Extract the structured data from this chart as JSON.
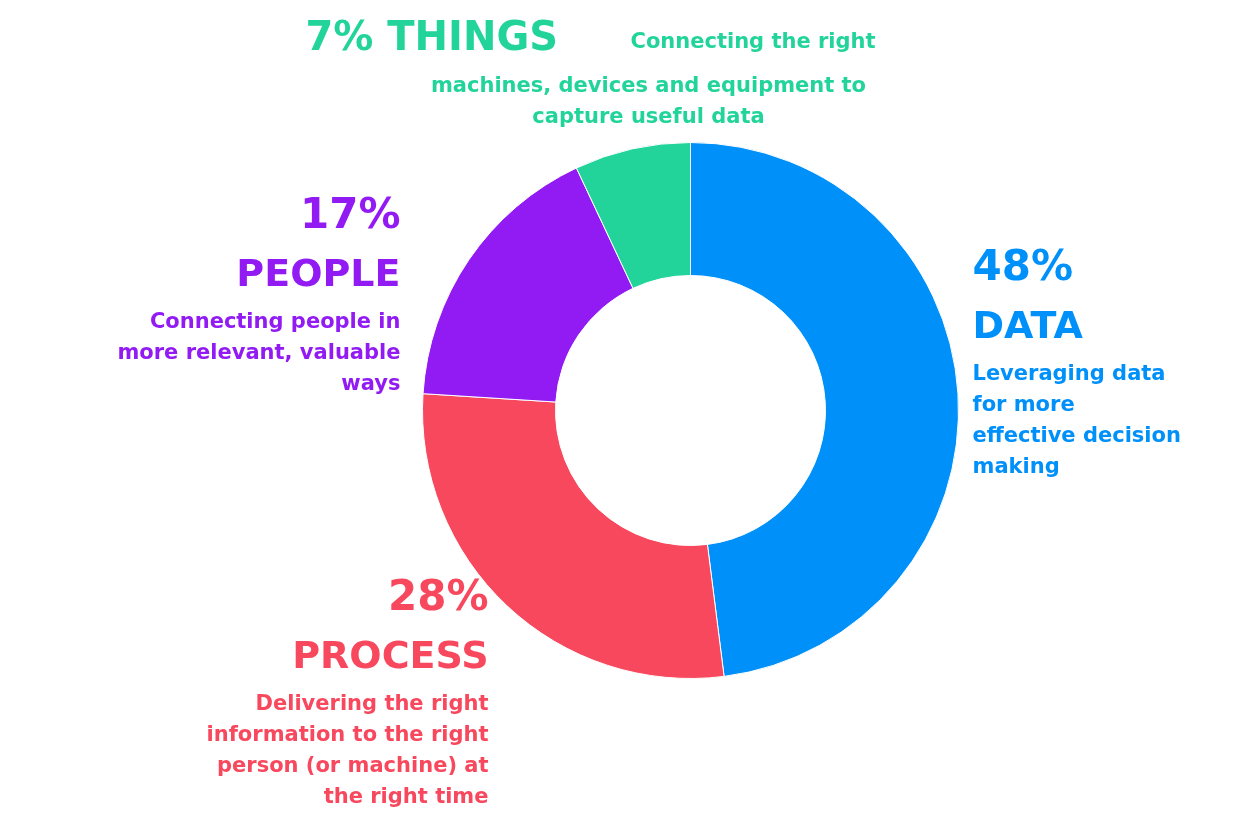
{
  "chart_data": {
    "type": "donut",
    "categories": [
      "DATA",
      "PROCESS",
      "PEOPLE",
      "THINGS"
    ],
    "values": [
      48,
      28,
      17,
      7
    ],
    "colors": [
      "#0090fa",
      "#f7485e",
      "#921bf4",
      "#22d49a"
    ],
    "value_labels": [
      "48%",
      "28%",
      "17%",
      "7%"
    ],
    "annotations": [
      "Leveraging data\nfor more\neffective decision\nmaking",
      "Delivering the right\ninformation to the right\nperson (or machine) at\nthe right time",
      "Connecting people in\nmore relevant, valuable\nways",
      "Connecting the right\nmachines, devices and equipment to\ncapture useful data"
    ]
  }
}
